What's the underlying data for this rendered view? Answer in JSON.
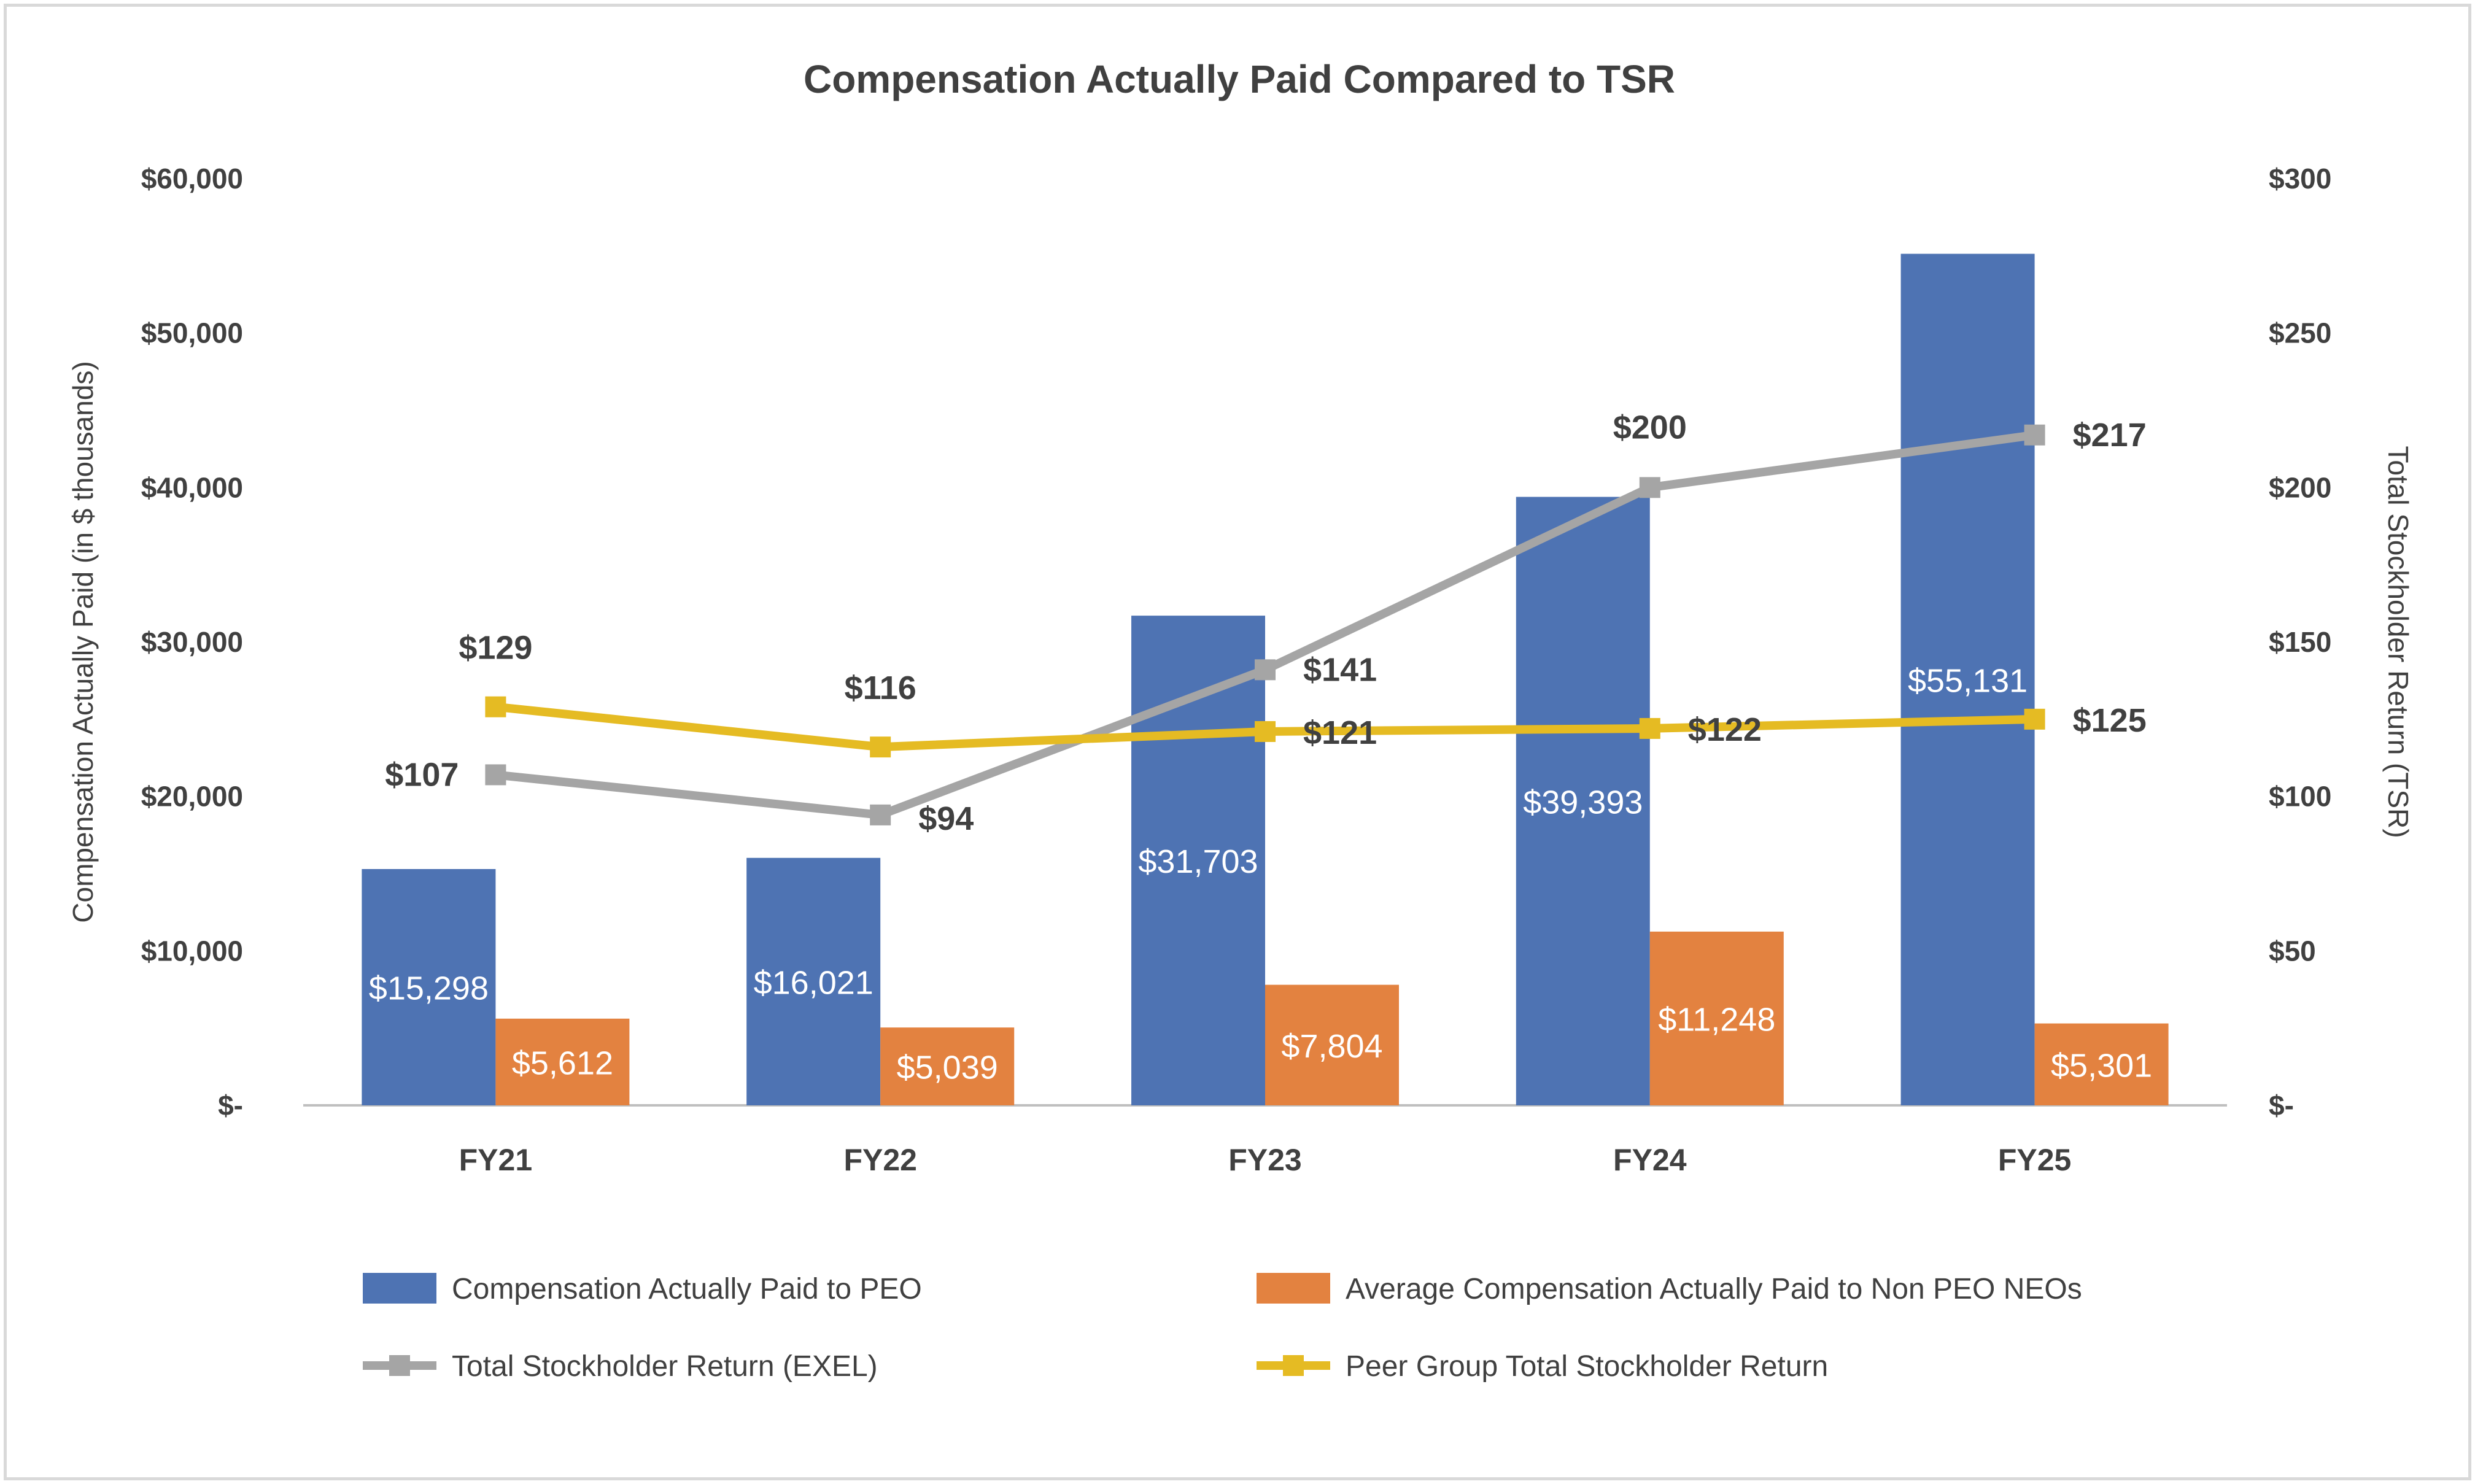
{
  "chart_data": {
    "type": "bar",
    "title": "Compensation Actually Paid Compared to TSR",
    "categories": [
      "FY21",
      "FY22",
      "FY23",
      "FY24",
      "FY25"
    ],
    "y_left": {
      "label": "Compensation Actually Paid (in $ thousands)",
      "range": [
        0,
        60000
      ],
      "ticks": [
        0,
        10000,
        20000,
        30000,
        40000,
        50000,
        60000
      ],
      "tick_labels": [
        "$-",
        "$10,000",
        "$20,000",
        "$30,000",
        "$40,000",
        "$50,000",
        "$60,000"
      ]
    },
    "y_right": {
      "label": "Total Stockholder Return (TSR)",
      "range": [
        0,
        300
      ],
      "ticks": [
        0,
        50,
        100,
        150,
        200,
        250,
        300
      ],
      "tick_labels": [
        "$-",
        "$50",
        "$100",
        "$150",
        "$200",
        "$250",
        "$300"
      ]
    },
    "grid": false,
    "legend_position": "bottom",
    "series": [
      {
        "name": "Compensation Actually Paid to PEO",
        "kind": "bar",
        "axis": "left",
        "color": "#4e73b3",
        "values": [
          15298,
          16021,
          31703,
          39393,
          55131
        ],
        "labels": [
          "$15,298",
          "$16,021",
          "$31,703",
          "$39,393",
          "$55,131"
        ]
      },
      {
        "name": "Average Compensation Actually Paid to Non PEO NEOs",
        "kind": "bar",
        "axis": "left",
        "color": "#e38240",
        "values": [
          5612,
          5039,
          7804,
          11248,
          5301
        ],
        "labels": [
          "$5,612",
          "$5,039",
          "$7,804",
          "$11,248",
          "$5,301"
        ]
      },
      {
        "name": "Total Stockholder Return (EXEL)",
        "kind": "line",
        "axis": "right",
        "color": "#a5a5a5",
        "values": [
          107,
          94,
          141,
          200,
          217
        ],
        "labels": [
          "$107",
          "$94",
          "$141",
          "$200",
          "$217"
        ]
      },
      {
        "name": "Peer Group Total Stockholder Return",
        "kind": "line",
        "axis": "right",
        "color": "#e5bb23",
        "values": [
          129,
          116,
          121,
          122,
          125
        ],
        "labels": [
          "$129",
          "$116",
          "$121",
          "$122",
          "$125"
        ]
      }
    ]
  }
}
